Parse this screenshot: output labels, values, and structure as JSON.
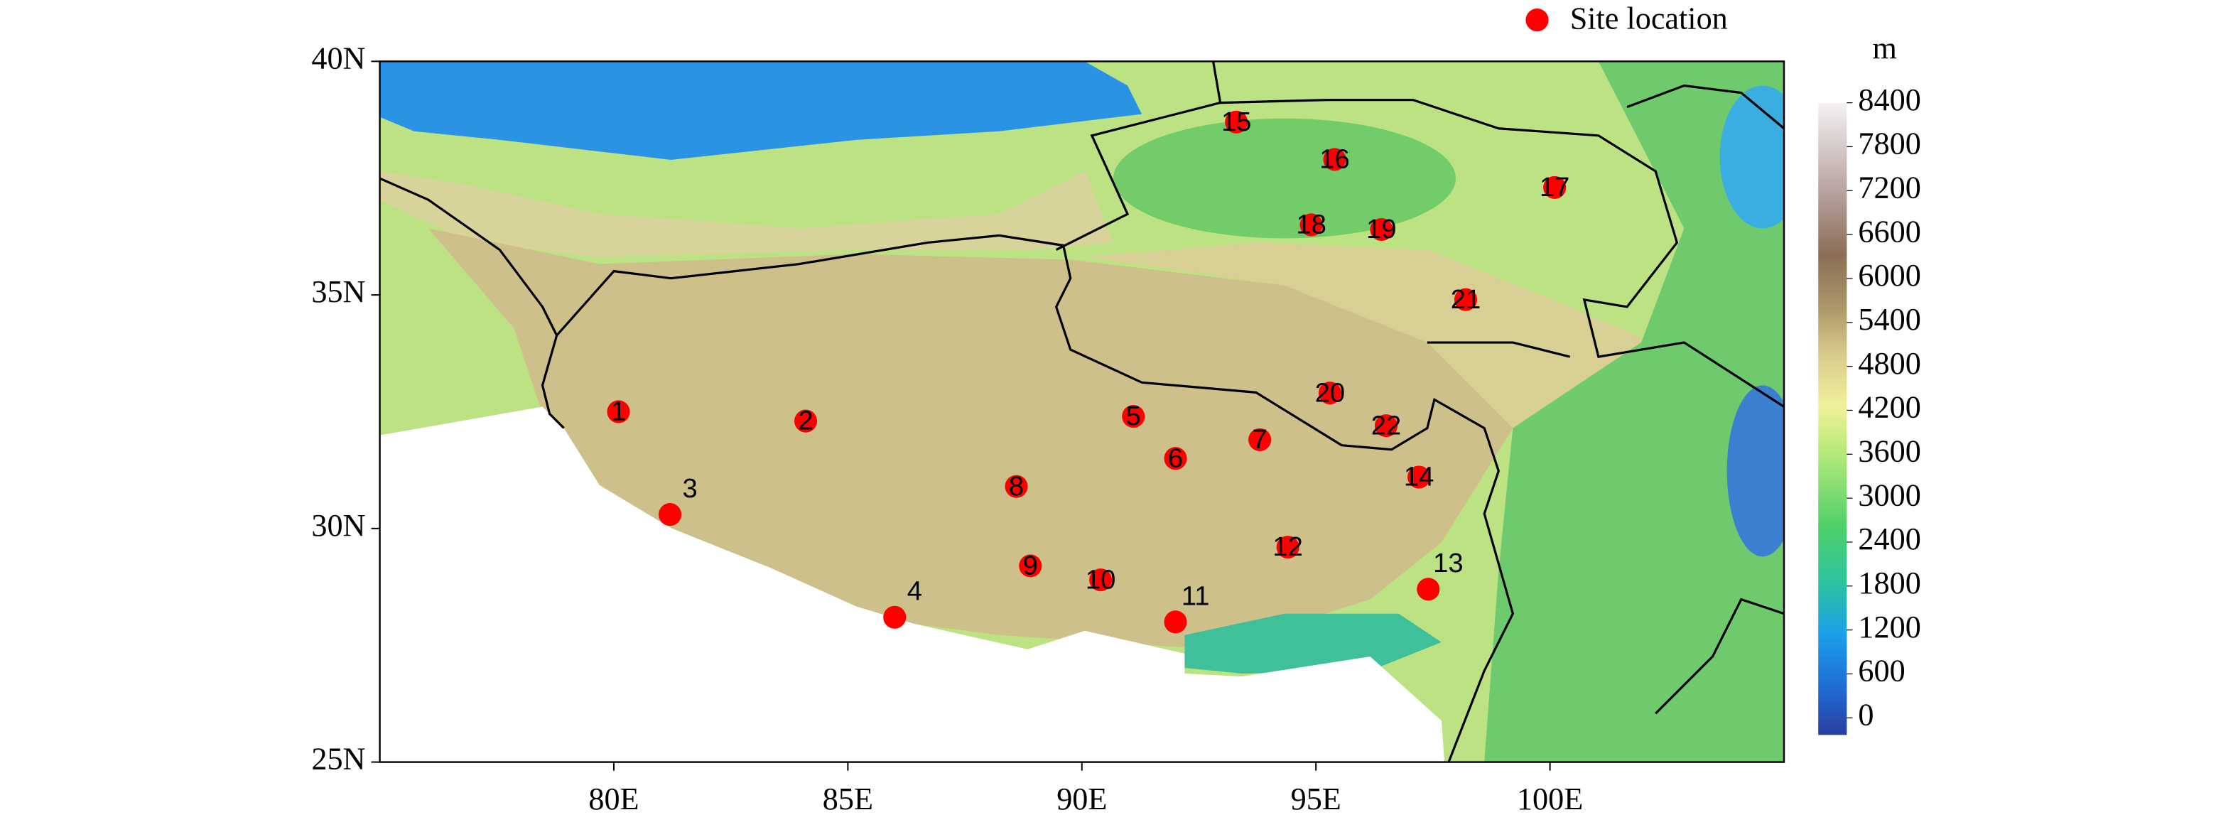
{
  "chart_data": {
    "type": "scatter",
    "xlim": [
      75,
      105
    ],
    "ylim": [
      25,
      40
    ],
    "xticks": [
      {
        "value": 80,
        "label": "80E"
      },
      {
        "value": 85,
        "label": "85E"
      },
      {
        "value": 90,
        "label": "90E"
      },
      {
        "value": 95,
        "label": "95E"
      },
      {
        "value": 100,
        "label": "100E"
      }
    ],
    "yticks": [
      {
        "value": 25,
        "label": "25N"
      },
      {
        "value": 30,
        "label": "30N"
      },
      {
        "value": 35,
        "label": "35N"
      },
      {
        "value": 40,
        "label": "40N"
      }
    ],
    "x": [
      80.1,
      84.1,
      81.2,
      86.0,
      91.1,
      92.0,
      93.8,
      88.6,
      88.9,
      90.4,
      92.0,
      94.4,
      97.4,
      97.2,
      93.3,
      95.4,
      100.1,
      94.9,
      96.4,
      95.3,
      98.2,
      96.5
    ],
    "labels": [
      "1",
      "2",
      "3",
      "4",
      "5",
      "6",
      "7",
      "8",
      "9",
      "10",
      "11",
      "12",
      "13",
      "14",
      "15",
      "16",
      "17",
      "18",
      "19",
      "20",
      "21",
      "22"
    ],
    "series": [
      {
        "name": "Site location",
        "color": "#ff0000",
        "values": [
          32.5,
          32.3,
          30.3,
          28.1,
          32.4,
          31.5,
          31.9,
          30.9,
          29.2,
          28.9,
          28.0,
          29.6,
          28.7,
          31.1,
          38.7,
          37.9,
          37.3,
          36.5,
          36.4,
          32.9,
          34.9,
          32.2
        ]
      }
    ],
    "colorbar": {
      "label": "m",
      "lim": [
        0,
        8400
      ],
      "ticks": [
        0,
        600,
        1200,
        1800,
        2400,
        3000,
        3600,
        4200,
        4800,
        5400,
        6000,
        6600,
        7200,
        7800,
        8400
      ]
    }
  }
}
